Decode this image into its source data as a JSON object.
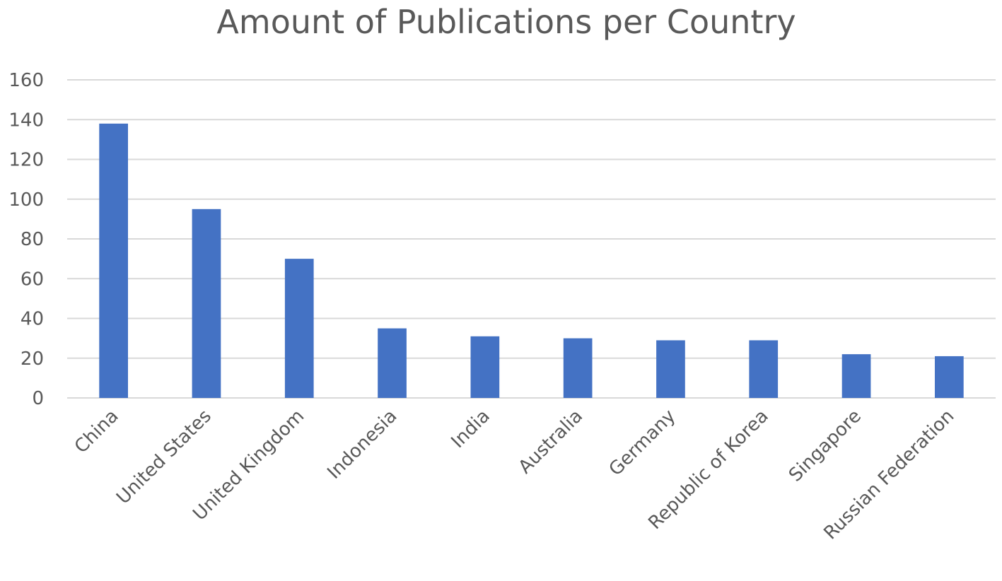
{
  "chart_data": {
    "type": "bar",
    "title": "Amount of Publications per Country",
    "categories": [
      "China",
      "United States",
      "United Kingdom",
      "Indonesia",
      "India",
      "Australia",
      "Germany",
      "Republic of Korea",
      "Singapore",
      "Russian Federation"
    ],
    "values": [
      138,
      95,
      70,
      35,
      31,
      30,
      29,
      29,
      22,
      21
    ],
    "ylim": [
      0,
      160
    ],
    "yticks": [
      0,
      20,
      40,
      60,
      80,
      100,
      120,
      140,
      160
    ],
    "xlabel": "",
    "ylabel": "",
    "grid": true,
    "bar_color": "#4472C4",
    "legend": "none"
  }
}
